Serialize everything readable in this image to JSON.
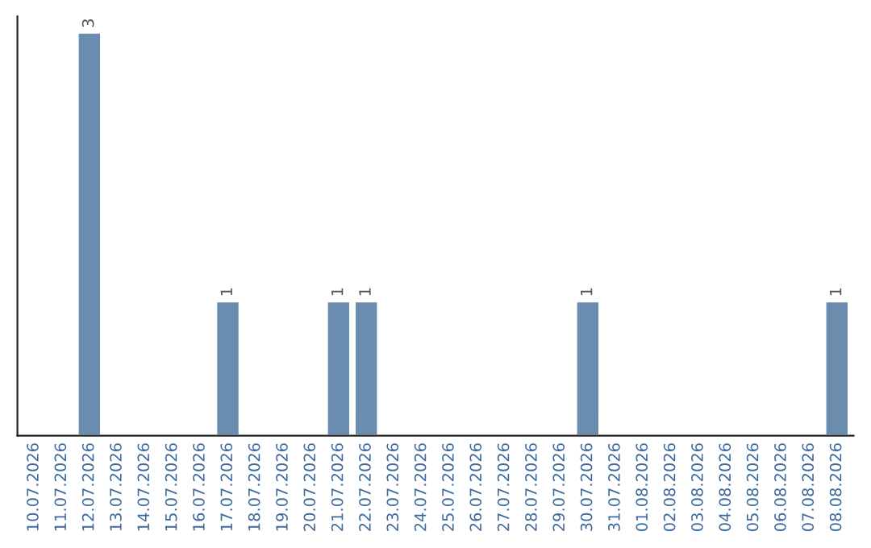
{
  "chart_data": {
    "type": "bar",
    "categories": [
      "10.07.2026",
      "11.07.2026",
      "12.07.2026",
      "13.07.2026",
      "14.07.2026",
      "15.07.2026",
      "16.07.2026",
      "17.07.2026",
      "18.07.2026",
      "19.07.2026",
      "20.07.2026",
      "21.07.2026",
      "22.07.2026",
      "23.07.2026",
      "24.07.2026",
      "25.07.2026",
      "26.07.2026",
      "27.07.2026",
      "28.07.2026",
      "29.07.2026",
      "30.07.2026",
      "31.07.2026",
      "01.08.2026",
      "02.08.2026",
      "03.08.2026",
      "04.08.2026",
      "05.08.2026",
      "06.08.2026",
      "07.08.2026",
      "08.08.2026"
    ],
    "values": [
      null,
      null,
      3,
      null,
      null,
      null,
      null,
      1,
      null,
      null,
      null,
      1,
      1,
      null,
      null,
      null,
      null,
      null,
      null,
      null,
      1,
      null,
      null,
      null,
      null,
      null,
      null,
      null,
      null,
      1
    ],
    "value_labels": [
      null,
      null,
      "3",
      null,
      null,
      null,
      null,
      "1",
      null,
      null,
      null,
      "1",
      "1",
      null,
      null,
      null,
      null,
      null,
      null,
      null,
      "1",
      null,
      null,
      null,
      null,
      null,
      null,
      null,
      null,
      "1"
    ],
    "color": "#6a8caf",
    "grid": false,
    "legend": false
  }
}
